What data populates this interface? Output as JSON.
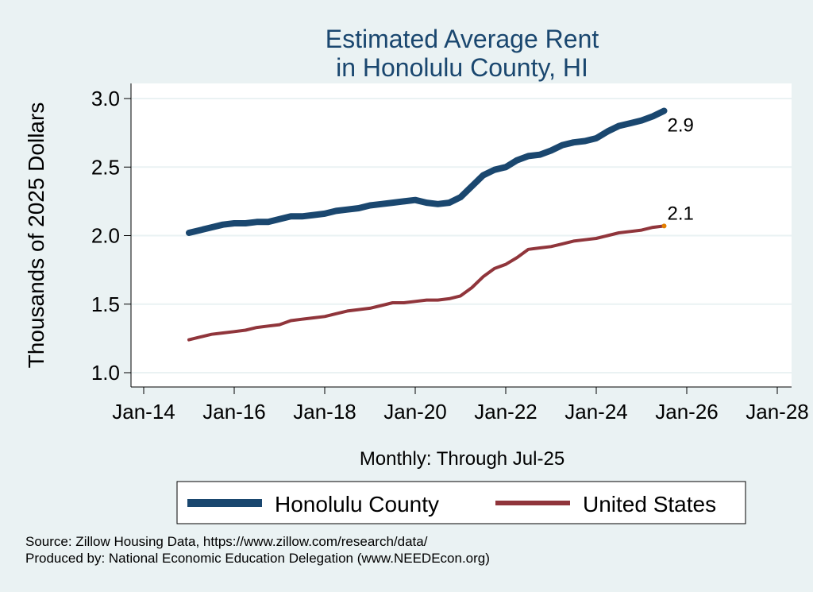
{
  "chart_data": {
    "type": "line",
    "title": [
      "Estimated Average Rent",
      "in Honolulu County, HI"
    ],
    "ylabel": "Thousands of 2025 Dollars",
    "xlabel": "Monthly: Through Jul-25",
    "ylim": [
      1.0,
      3.0
    ],
    "yticks": [
      "1.0",
      "1.5",
      "2.0",
      "2.5",
      "3.0"
    ],
    "xticks": [
      "Jan-14",
      "Jan-16",
      "Jan-18",
      "Jan-20",
      "Jan-22",
      "Jan-24",
      "Jan-26",
      "Jan-28"
    ],
    "legend_position": "bottom",
    "grid": true,
    "series": [
      {
        "name": "Honolulu County",
        "color": "#1a476f",
        "end_label": "2.9",
        "points": [
          [
            "2015-01",
            2.02
          ],
          [
            "2015-04",
            2.04
          ],
          [
            "2015-07",
            2.06
          ],
          [
            "2015-10",
            2.08
          ],
          [
            "2016-01",
            2.09
          ],
          [
            "2016-04",
            2.09
          ],
          [
            "2016-07",
            2.1
          ],
          [
            "2016-10",
            2.1
          ],
          [
            "2017-01",
            2.12
          ],
          [
            "2017-04",
            2.14
          ],
          [
            "2017-07",
            2.14
          ],
          [
            "2017-10",
            2.15
          ],
          [
            "2018-01",
            2.16
          ],
          [
            "2018-04",
            2.18
          ],
          [
            "2018-07",
            2.19
          ],
          [
            "2018-10",
            2.2
          ],
          [
            "2019-01",
            2.22
          ],
          [
            "2019-04",
            2.23
          ],
          [
            "2019-07",
            2.24
          ],
          [
            "2019-10",
            2.25
          ],
          [
            "2020-01",
            2.26
          ],
          [
            "2020-04",
            2.24
          ],
          [
            "2020-07",
            2.23
          ],
          [
            "2020-10",
            2.24
          ],
          [
            "2021-01",
            2.28
          ],
          [
            "2021-04",
            2.36
          ],
          [
            "2021-07",
            2.44
          ],
          [
            "2021-10",
            2.48
          ],
          [
            "2022-01",
            2.5
          ],
          [
            "2022-04",
            2.55
          ],
          [
            "2022-07",
            2.58
          ],
          [
            "2022-10",
            2.59
          ],
          [
            "2023-01",
            2.62
          ],
          [
            "2023-04",
            2.66
          ],
          [
            "2023-07",
            2.68
          ],
          [
            "2023-10",
            2.69
          ],
          [
            "2024-01",
            2.71
          ],
          [
            "2024-04",
            2.76
          ],
          [
            "2024-07",
            2.8
          ],
          [
            "2024-10",
            2.82
          ],
          [
            "2025-01",
            2.84
          ],
          [
            "2025-04",
            2.87
          ],
          [
            "2025-07",
            2.91
          ]
        ]
      },
      {
        "name": "United States",
        "color": "#90353b",
        "end_label": "2.1",
        "end_marker_color": "#e37e00",
        "points": [
          [
            "2015-01",
            1.24
          ],
          [
            "2015-04",
            1.26
          ],
          [
            "2015-07",
            1.28
          ],
          [
            "2015-10",
            1.29
          ],
          [
            "2016-01",
            1.3
          ],
          [
            "2016-04",
            1.31
          ],
          [
            "2016-07",
            1.33
          ],
          [
            "2016-10",
            1.34
          ],
          [
            "2017-01",
            1.35
          ],
          [
            "2017-04",
            1.38
          ],
          [
            "2017-07",
            1.39
          ],
          [
            "2017-10",
            1.4
          ],
          [
            "2018-01",
            1.41
          ],
          [
            "2018-04",
            1.43
          ],
          [
            "2018-07",
            1.45
          ],
          [
            "2018-10",
            1.46
          ],
          [
            "2019-01",
            1.47
          ],
          [
            "2019-04",
            1.49
          ],
          [
            "2019-07",
            1.51
          ],
          [
            "2019-10",
            1.51
          ],
          [
            "2020-01",
            1.52
          ],
          [
            "2020-04",
            1.53
          ],
          [
            "2020-07",
            1.53
          ],
          [
            "2020-10",
            1.54
          ],
          [
            "2021-01",
            1.56
          ],
          [
            "2021-04",
            1.62
          ],
          [
            "2021-07",
            1.7
          ],
          [
            "2021-10",
            1.76
          ],
          [
            "2022-01",
            1.79
          ],
          [
            "2022-04",
            1.84
          ],
          [
            "2022-07",
            1.9
          ],
          [
            "2022-10",
            1.91
          ],
          [
            "2023-01",
            1.92
          ],
          [
            "2023-04",
            1.94
          ],
          [
            "2023-07",
            1.96
          ],
          [
            "2023-10",
            1.97
          ],
          [
            "2024-01",
            1.98
          ],
          [
            "2024-04",
            2.0
          ],
          [
            "2024-07",
            2.02
          ],
          [
            "2024-10",
            2.03
          ],
          [
            "2025-01",
            2.04
          ],
          [
            "2025-04",
            2.06
          ],
          [
            "2025-07",
            2.07
          ]
        ]
      }
    ]
  },
  "source_line": "Source: Zillow Housing Data, https://www.zillow.com/research/data/",
  "produced_line": "Produced by: National Economic Education Delegation (www.NEEDEcon.org)"
}
